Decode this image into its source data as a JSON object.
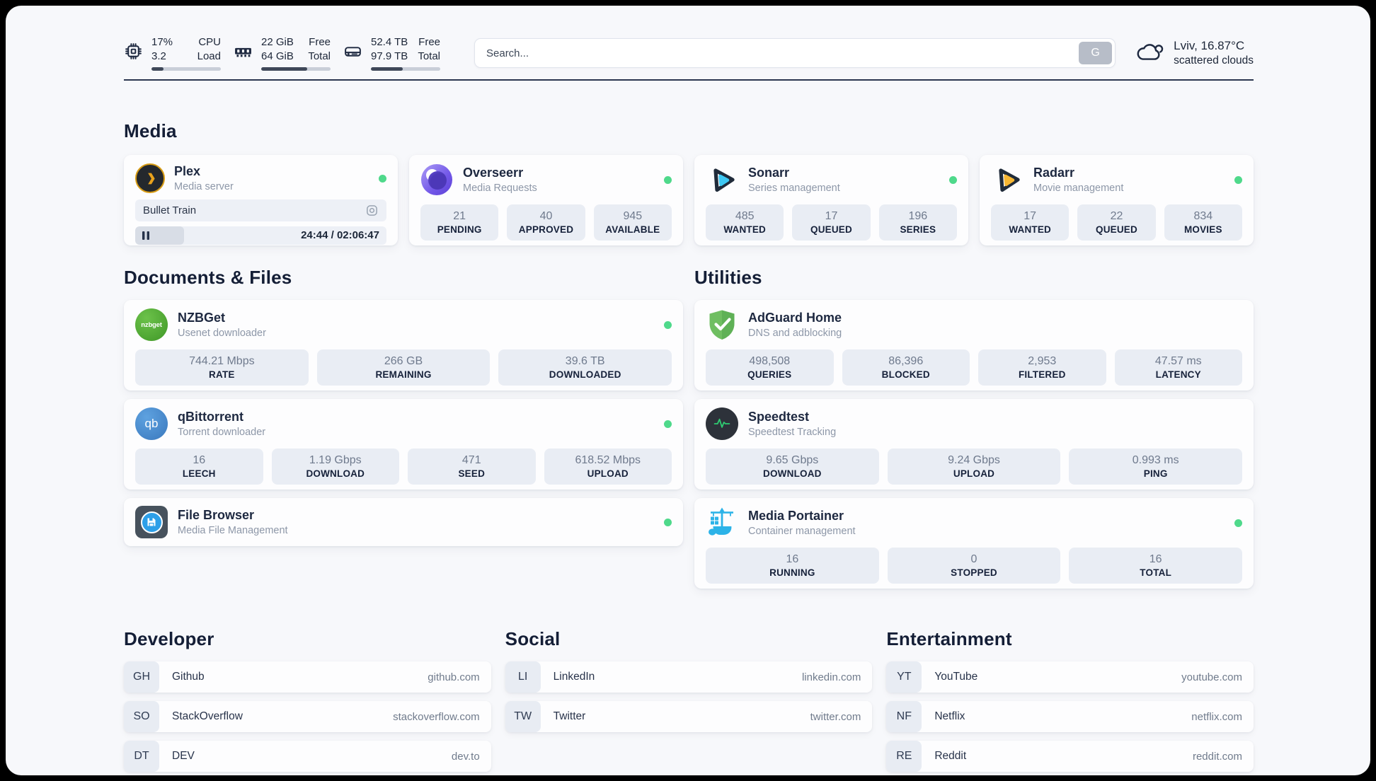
{
  "colors": {
    "status_online": "#4fd98b",
    "page_background": "#f7f8fb",
    "accent_dark": "#1c2638"
  },
  "topbar": {
    "cpu": {
      "stat_top": "17%",
      "stat_bottom": "3.2",
      "label_top": "CPU",
      "label_bottom": "Load",
      "progress_pct": 17
    },
    "memory": {
      "stat_top": "22 GiB",
      "stat_bottom": "64 GiB",
      "label_top": "Free",
      "label_bottom": "Total",
      "progress_pct": 66
    },
    "disk": {
      "stat_top": "52.4 TB",
      "stat_bottom": "97.9 TB",
      "label_top": "Free",
      "label_bottom": "Total",
      "progress_pct": 46
    },
    "search": {
      "placeholder": "Search...",
      "engine_button_label": "G"
    },
    "weather": {
      "location_temperature": "Lviv, 16.87°C",
      "condition": "scattered clouds"
    }
  },
  "sections": {
    "media": "Media",
    "documents": "Documents & Files",
    "utilities": "Utilities",
    "developer": "Developer",
    "social": "Social",
    "entertainment": "Entertainment"
  },
  "apps": {
    "plex": {
      "name": "Plex",
      "description": "Media server",
      "now_playing": "Bullet Train",
      "time": "24:44 / 02:06:47",
      "progress_pct": 19.5
    },
    "overseerr": {
      "name": "Overseerr",
      "description": "Media Requests",
      "stats": [
        {
          "value": "21",
          "label": "PENDING"
        },
        {
          "value": "40",
          "label": "APPROVED"
        },
        {
          "value": "945",
          "label": "AVAILABLE"
        }
      ]
    },
    "sonarr": {
      "name": "Sonarr",
      "description": "Series management",
      "stats": [
        {
          "value": "485",
          "label": "WANTED"
        },
        {
          "value": "17",
          "label": "QUEUED"
        },
        {
          "value": "196",
          "label": "SERIES"
        }
      ]
    },
    "radarr": {
      "name": "Radarr",
      "description": "Movie management",
      "stats": [
        {
          "value": "17",
          "label": "WANTED"
        },
        {
          "value": "22",
          "label": "QUEUED"
        },
        {
          "value": "834",
          "label": "MOVIES"
        }
      ]
    },
    "nzbget": {
      "name": "NZBGet",
      "description": "Usenet downloader",
      "logo_text": "nzbget",
      "stats": [
        {
          "value": "744.21 Mbps",
          "label": "RATE"
        },
        {
          "value": "266 GB",
          "label": "REMAINING"
        },
        {
          "value": "39.6 TB",
          "label": "DOWNLOADED"
        }
      ]
    },
    "qbittorrent": {
      "name": "qBittorrent",
      "description": "Torrent downloader",
      "logo_text": "qb",
      "stats": [
        {
          "value": "16",
          "label": "LEECH"
        },
        {
          "value": "1.19 Gbps",
          "label": "DOWNLOAD"
        },
        {
          "value": "471",
          "label": "SEED"
        },
        {
          "value": "618.52 Mbps",
          "label": "UPLOAD"
        }
      ]
    },
    "filebrowser": {
      "name": "File Browser",
      "description": "Media File Management"
    },
    "adguard": {
      "name": "AdGuard Home",
      "description": "DNS and adblocking",
      "stats": [
        {
          "value": "498,508",
          "label": "QUERIES"
        },
        {
          "value": "86,396",
          "label": "BLOCKED"
        },
        {
          "value": "2,953",
          "label": "FILTERED"
        },
        {
          "value": "47.57 ms",
          "label": "LATENCY"
        }
      ]
    },
    "speedtest": {
      "name": "Speedtest",
      "description": "Speedtest Tracking",
      "stats": [
        {
          "value": "9.65 Gbps",
          "label": "DOWNLOAD"
        },
        {
          "value": "9.24 Gbps",
          "label": "UPLOAD"
        },
        {
          "value": "0.993 ms",
          "label": "PING"
        }
      ]
    },
    "portainer": {
      "name": "Media Portainer",
      "description": "Container management",
      "stats": [
        {
          "value": "16",
          "label": "RUNNING"
        },
        {
          "value": "0",
          "label": "STOPPED"
        },
        {
          "value": "16",
          "label": "TOTAL"
        }
      ]
    }
  },
  "bookmarks": {
    "developer": [
      {
        "abbr": "GH",
        "name": "Github",
        "url": "github.com"
      },
      {
        "abbr": "SO",
        "name": "StackOverflow",
        "url": "stackoverflow.com"
      },
      {
        "abbr": "DT",
        "name": "DEV",
        "url": "dev.to"
      }
    ],
    "social": [
      {
        "abbr": "LI",
        "name": "LinkedIn",
        "url": "linkedin.com"
      },
      {
        "abbr": "TW",
        "name": "Twitter",
        "url": "twitter.com"
      }
    ],
    "entertainment": [
      {
        "abbr": "YT",
        "name": "YouTube",
        "url": "youtube.com"
      },
      {
        "abbr": "NF",
        "name": "Netflix",
        "url": "netflix.com"
      },
      {
        "abbr": "RE",
        "name": "Reddit",
        "url": "reddit.com"
      }
    ]
  }
}
